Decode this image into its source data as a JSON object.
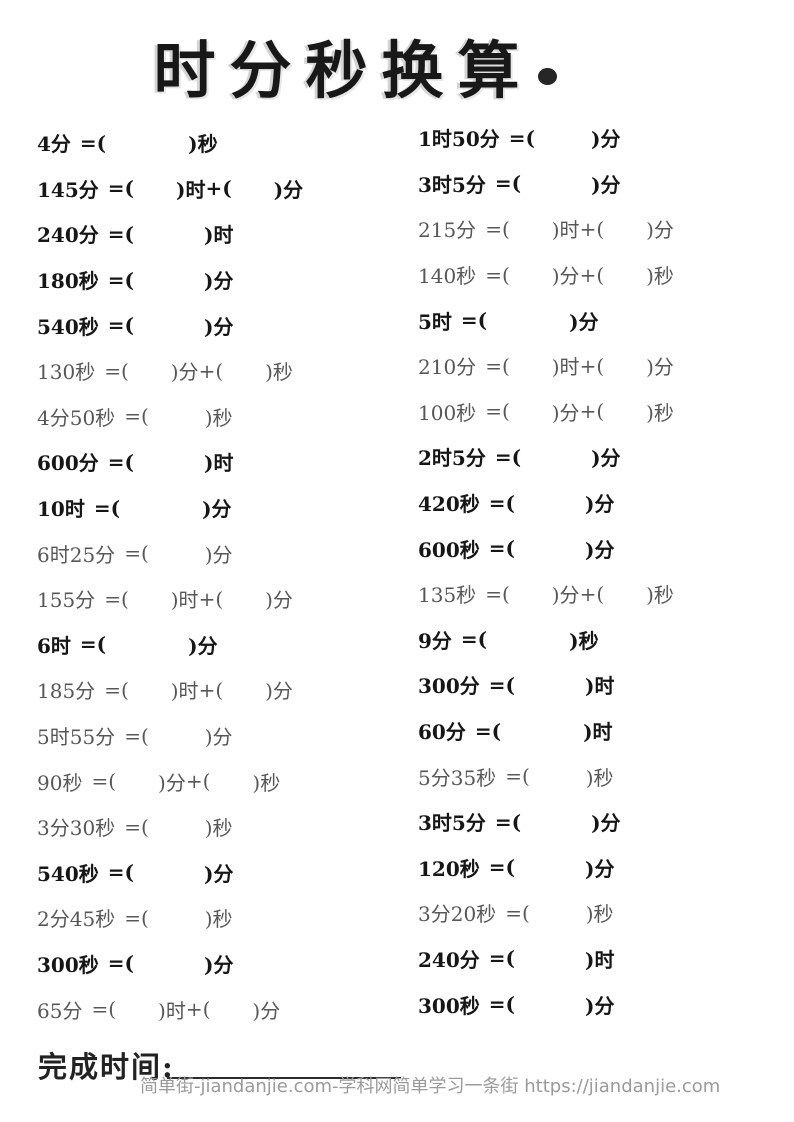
{
  "title": {
    "text": "时分秒换算",
    "bullet": "dot"
  },
  "symbols": {
    "eq": "=(",
    "close": ")",
    "plus": "+("
  },
  "worksheet": {
    "left": [
      {
        "q": "4分",
        "u1": "秒",
        "w": "bold"
      },
      {
        "q": "145分",
        "u1": "时",
        "u2": "分",
        "w": "bold"
      },
      {
        "q": "240分",
        "u1": "时",
        "w": "bold"
      },
      {
        "q": "180秒",
        "u1": "分",
        "w": "bold"
      },
      {
        "q": "540秒",
        "u1": "分",
        "w": "bold"
      },
      {
        "q": "130秒",
        "u1": "分",
        "u2": "秒",
        "w": "light"
      },
      {
        "q": "4分50秒",
        "u1": "秒",
        "w": "light"
      },
      {
        "q": "600分",
        "u1": "时",
        "w": "bold"
      },
      {
        "q": "10时",
        "u1": "分",
        "w": "bold"
      },
      {
        "q": "6时25分",
        "u1": "分",
        "w": "light"
      },
      {
        "q": "155分",
        "u1": "时",
        "u2": "分",
        "w": "light"
      },
      {
        "q": "6时",
        "u1": "分",
        "w": "bold"
      },
      {
        "q": "185分",
        "u1": "时",
        "u2": "分",
        "w": "light"
      },
      {
        "q": "5时55分",
        "u1": "分",
        "w": "light"
      },
      {
        "q": "90秒",
        "u1": "分",
        "u2": "秒",
        "w": "light"
      },
      {
        "q": "3分30秒",
        "u1": "秒",
        "w": "light"
      },
      {
        "q": "540秒",
        "u1": "分",
        "w": "bold"
      },
      {
        "q": "2分45秒",
        "u1": "秒",
        "w": "light"
      },
      {
        "q": "300秒",
        "u1": "分",
        "w": "bold"
      },
      {
        "q": "65分",
        "u1": "时",
        "u2": "分",
        "w": "light"
      }
    ],
    "right": [
      {
        "q": "1时50分",
        "u1": "分",
        "w": "bold"
      },
      {
        "q": "3时5分",
        "u1": "分",
        "w": "bold"
      },
      {
        "q": "215分",
        "u1": "时",
        "u2": "分",
        "w": "light"
      },
      {
        "q": "140秒",
        "u1": "分",
        "u2": "秒",
        "w": "light"
      },
      {
        "q": "5时",
        "u1": "分",
        "w": "bold"
      },
      {
        "q": "210分",
        "u1": "时",
        "u2": "分",
        "w": "light"
      },
      {
        "q": "100秒",
        "u1": "分",
        "u2": "秒",
        "w": "light"
      },
      {
        "q": "2时5分",
        "u1": "分",
        "w": "bold"
      },
      {
        "q": "420秒",
        "u1": "分",
        "w": "bold"
      },
      {
        "q": "600秒",
        "u1": "分",
        "w": "bold"
      },
      {
        "q": "135秒",
        "u1": "分",
        "u2": "秒",
        "w": "light"
      },
      {
        "q": "9分",
        "u1": "秒",
        "w": "bold"
      },
      {
        "q": "300分",
        "u1": "时",
        "w": "bold"
      },
      {
        "q": "60分",
        "u1": "时",
        "w": "bold"
      },
      {
        "q": "5分35秒",
        "u1": "秒",
        "w": "light"
      },
      {
        "q": "3时5分",
        "u1": "分",
        "w": "bold"
      },
      {
        "q": "120秒",
        "u1": "分",
        "w": "bold"
      },
      {
        "q": "3分20秒",
        "u1": "秒",
        "w": "light"
      },
      {
        "q": "240分",
        "u1": "时",
        "w": "bold"
      },
      {
        "q": "300秒",
        "u1": "分",
        "w": "bold"
      }
    ]
  },
  "footer": {
    "label": "完成时间:",
    "watermark": "简单街-jiandanjie.com-学科网简单学习一条街 https://jiandanjie.com"
  },
  "colors": {
    "ink": "#161616",
    "light_ink": "#575757",
    "watermark": "#9a9a9a",
    "background": "#ffffff"
  }
}
